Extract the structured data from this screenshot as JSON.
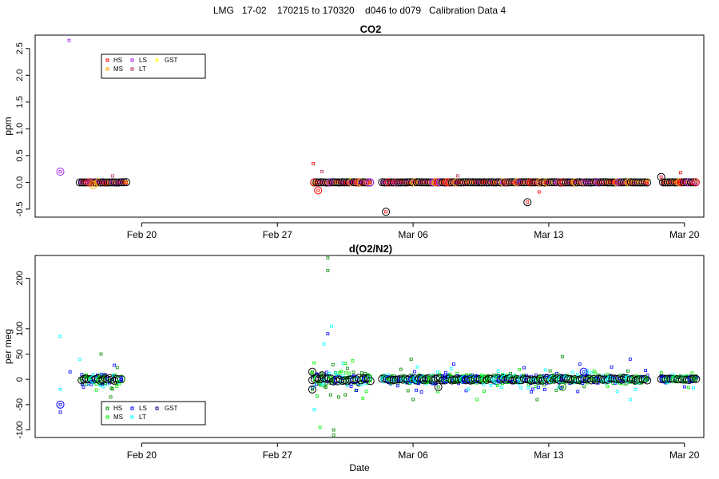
{
  "page": {
    "title": "LMG   17-02    170215 to 170320    d046 to d079   Calibration Data 4"
  },
  "chart_data": [
    {
      "type": "scatter",
      "title": "CO2",
      "ylabel": "ppm",
      "xlabel": "",
      "xlim": [
        45.5,
        80.0
      ],
      "ylim": [
        -0.65,
        2.75
      ],
      "yticks": [
        -0.5,
        0.0,
        0.5,
        1.0,
        1.5,
        2.0,
        2.5
      ],
      "ytick_labels": [
        "-0.5",
        "0.0",
        "0.5",
        "1.0",
        "1.5",
        "2.0",
        "2.5"
      ],
      "xticks": [
        51,
        58,
        65,
        72,
        79
      ],
      "xtick_labels": [
        "Feb 20",
        "Feb 27",
        "Mar 06",
        "Mar 13",
        "Mar 20"
      ],
      "legend": {
        "position": "top-left",
        "entries": [
          {
            "label": "HS",
            "color": "#ff0000"
          },
          {
            "label": "MS",
            "color": "#ffa500"
          },
          {
            "label": "LS",
            "color": "#a020f0"
          },
          {
            "label": "LT",
            "color": "#b03060"
          },
          {
            "label": "GST",
            "color": "#ffff00"
          }
        ]
      },
      "outliers": [
        {
          "x": 47.25,
          "y": 2.65,
          "color": "#a020f0",
          "size": "small"
        },
        {
          "x": 46.8,
          "y": 0.2,
          "color": "#a020f0",
          "size": "large"
        },
        {
          "x": 59.85,
          "y": 0.35,
          "color": "#ff0000",
          "size": "small"
        },
        {
          "x": 60.1,
          "y": -0.15,
          "color": "#ff0000",
          "size": "large"
        },
        {
          "x": 60.3,
          "y": 0.2,
          "color": "#b03060",
          "size": "small"
        },
        {
          "x": 63.6,
          "y": -0.55,
          "color": "#000000",
          "size": "large"
        },
        {
          "x": 67.3,
          "y": 0.12,
          "color": "#b03060",
          "size": "small"
        },
        {
          "x": 70.9,
          "y": -0.37,
          "color": "#000000",
          "size": "large"
        },
        {
          "x": 71.5,
          "y": -0.18,
          "color": "#ff0000",
          "size": "small"
        },
        {
          "x": 77.8,
          "y": 0.1,
          "color": "#000000",
          "size": "large"
        },
        {
          "x": 78.8,
          "y": 0.18,
          "color": "#ff0000",
          "size": "small"
        },
        {
          "x": 48.5,
          "y": -0.05,
          "color": "#ffa500",
          "size": "large"
        },
        {
          "x": 49.5,
          "y": 0.12,
          "color": "#b03060",
          "size": "small"
        }
      ],
      "clusters": [
        {
          "x_start": 47.8,
          "x_end": 50.2,
          "y_center": 0.0,
          "y_spread": 0.04,
          "step": 0.12
        },
        {
          "x_start": 59.9,
          "x_end": 62.8,
          "y_center": 0.0,
          "y_spread": 0.03,
          "step": 0.12
        },
        {
          "x_start": 63.4,
          "x_end": 77.1,
          "y_center": 0.0,
          "y_spread": 0.03,
          "step": 0.12
        },
        {
          "x_start": 77.9,
          "x_end": 79.6,
          "y_center": 0.0,
          "y_spread": 0.03,
          "step": 0.12
        }
      ]
    },
    {
      "type": "scatter",
      "title": "d(O2/N2)",
      "ylabel": "per meg",
      "xlabel": "Date",
      "xlim": [
        45.5,
        80.0
      ],
      "ylim": [
        -115,
        245
      ],
      "yticks": [
        -100,
        -50,
        0,
        50,
        100,
        200
      ],
      "ytick_labels": [
        "-100",
        "-50",
        "0",
        "50",
        "100",
        "200"
      ],
      "xticks": [
        51,
        58,
        65,
        72,
        79
      ],
      "xtick_labels": [
        "Feb 20",
        "Feb 27",
        "Mar 06",
        "Mar 13",
        "Mar 20"
      ],
      "legend": {
        "position": "bottom-left",
        "entries": [
          {
            "label": "HS",
            "color": "#008b00"
          },
          {
            "label": "MS",
            "color": "#00ee00"
          },
          {
            "label": "LS",
            "color": "#0000ff"
          },
          {
            "label": "LT",
            "color": "#00ffff"
          },
          {
            "label": "GST",
            "color": "#00008b"
          }
        ]
      },
      "outliers": [
        {
          "x": 46.8,
          "y": 85,
          "color": "#00ffff",
          "size": "small"
        },
        {
          "x": 46.8,
          "y": -50,
          "color": "#0000ff",
          "size": "large"
        },
        {
          "x": 46.8,
          "y": -20,
          "color": "#00ffff",
          "size": "small"
        },
        {
          "x": 46.8,
          "y": -65,
          "color": "#0000ff",
          "size": "small"
        },
        {
          "x": 47.3,
          "y": 15,
          "color": "#0000ff",
          "size": "small"
        },
        {
          "x": 47.8,
          "y": 40,
          "color": "#00ffff",
          "size": "small"
        },
        {
          "x": 48.9,
          "y": 50,
          "color": "#008b00",
          "size": "small"
        },
        {
          "x": 49.4,
          "y": -35,
          "color": "#008b00",
          "size": "small"
        },
        {
          "x": 60.6,
          "y": 240,
          "color": "#008b00",
          "size": "small"
        },
        {
          "x": 60.6,
          "y": 215,
          "color": "#008b00",
          "size": "small"
        },
        {
          "x": 60.8,
          "y": 105,
          "color": "#00ffff",
          "size": "small"
        },
        {
          "x": 60.6,
          "y": 90,
          "color": "#0000ff",
          "size": "small"
        },
        {
          "x": 60.4,
          "y": 70,
          "color": "#00ffff",
          "size": "small"
        },
        {
          "x": 60.9,
          "y": -100,
          "color": "#008b00",
          "size": "small"
        },
        {
          "x": 60.9,
          "y": -110,
          "color": "#008b00",
          "size": "small"
        },
        {
          "x": 60.2,
          "y": -95,
          "color": "#00ee00",
          "size": "small"
        },
        {
          "x": 59.9,
          "y": -60,
          "color": "#00ffff",
          "size": "small"
        },
        {
          "x": 59.8,
          "y": 15,
          "color": "#000000",
          "size": "large"
        },
        {
          "x": 59.8,
          "y": -20,
          "color": "#000000",
          "size": "large"
        },
        {
          "x": 60.3,
          "y": 8,
          "color": "#000000",
          "size": "large"
        },
        {
          "x": 64.9,
          "y": 40,
          "color": "#008b00",
          "size": "small"
        },
        {
          "x": 65.0,
          "y": -40,
          "color": "#008b00",
          "size": "small"
        },
        {
          "x": 67.1,
          "y": 30,
          "color": "#0000ff",
          "size": "small"
        },
        {
          "x": 68.3,
          "y": -40,
          "color": "#00ee00",
          "size": "small"
        },
        {
          "x": 71.4,
          "y": -40,
          "color": "#008b00",
          "size": "small"
        },
        {
          "x": 72.7,
          "y": 45,
          "color": "#008b00",
          "size": "small"
        },
        {
          "x": 73.6,
          "y": 30,
          "color": "#0000ff",
          "size": "small"
        },
        {
          "x": 76.2,
          "y": 40,
          "color": "#0000ff",
          "size": "small"
        },
        {
          "x": 76.2,
          "y": -40,
          "color": "#00ffff",
          "size": "small"
        },
        {
          "x": 66.3,
          "y": -15,
          "color": "#000000",
          "size": "large"
        },
        {
          "x": 72.7,
          "y": -15,
          "color": "#008b00",
          "size": "large"
        },
        {
          "x": 73.8,
          "y": 15,
          "color": "#0000ff",
          "size": "large"
        }
      ],
      "clusters": [
        {
          "x_start": 47.9,
          "x_end": 50.0,
          "y_center": 0,
          "y_spread": 30,
          "step": 0.12
        },
        {
          "x_start": 59.8,
          "x_end": 62.9,
          "y_center": 0,
          "y_spread": 40,
          "step": 0.12
        },
        {
          "x_start": 63.4,
          "x_end": 77.1,
          "y_center": 0,
          "y_spread": 25,
          "step": 0.12
        },
        {
          "x_start": 77.8,
          "x_end": 79.6,
          "y_center": 0,
          "y_spread": 20,
          "step": 0.12
        }
      ]
    }
  ]
}
